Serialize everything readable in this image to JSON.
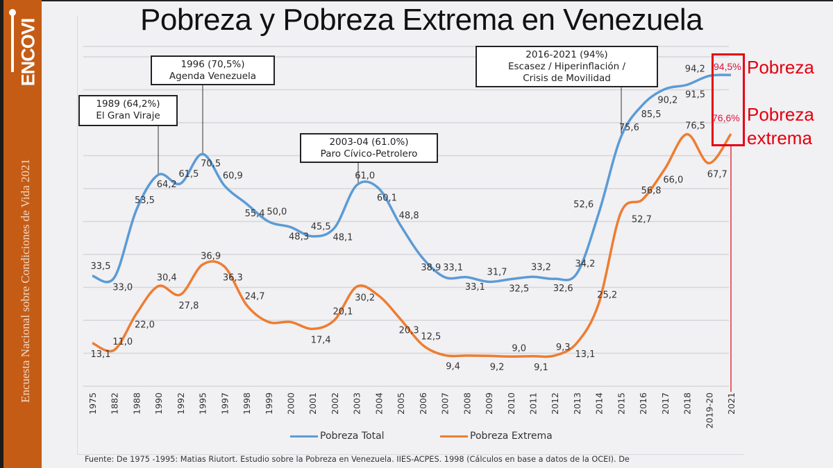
{
  "sidebar": {
    "logo_text": "ENCOVI",
    "subtitle": "Encuesta Nacional sobre Condiciones de Vida 2021",
    "color": "#c55c16"
  },
  "chart_data": {
    "type": "line",
    "title": "Pobreza y Pobreza Extrema en Venezuela",
    "categories": [
      "1975",
      "1882",
      "1988",
      "1990",
      "1992",
      "1995",
      "1997",
      "1998",
      "1999",
      "2000",
      "2001",
      "2002",
      "2003",
      "2004",
      "2005",
      "2006",
      "2007",
      "2008",
      "2009",
      "2010",
      "2011",
      "2012",
      "2013",
      "2014",
      "2015",
      "2016",
      "2017",
      "2018",
      "2019-20",
      "2021"
    ],
    "ylim": [
      0,
      100
    ],
    "grid": true,
    "legend_position": "bottom",
    "series": [
      {
        "name": "Pobreza Total",
        "color": "#5b9bd5",
        "values": [
          33.5,
          33.0,
          53.5,
          64.2,
          61.5,
          70.5,
          60.9,
          55.4,
          50.0,
          48.3,
          45.5,
          48.1,
          61.0,
          60.1,
          48.8,
          38.9,
          33.1,
          33.1,
          31.7,
          32.5,
          33.2,
          32.6,
          34.2,
          52.6,
          75.6,
          85.5,
          90.2,
          91.5,
          94.2,
          94.5
        ],
        "labels": [
          "33,5",
          "33,0",
          "53,5",
          "64,2",
          "61,5",
          "70,5",
          "60,9",
          "55,4",
          "50,0",
          "48,3",
          "45,5",
          "48,1",
          "61,0",
          "60,1",
          "48,8",
          "38,9",
          "33,1",
          "33,1",
          "31,7",
          "32,5",
          "33,2",
          "32,6",
          "34,2",
          "52,6",
          "75,6",
          "85,5",
          "90,2",
          "91,5",
          "94,2",
          null
        ]
      },
      {
        "name": "Pobreza Extrema",
        "color": "#ed7d31",
        "values": [
          13.1,
          11.0,
          22.0,
          30.4,
          27.8,
          36.9,
          36.3,
          24.7,
          19.5,
          19.5,
          17.4,
          20.1,
          30.2,
          27.5,
          20.3,
          12.5,
          9.4,
          9.3,
          9.2,
          9.0,
          9.1,
          9.3,
          13.1,
          25.2,
          52.7,
          56.8,
          66.0,
          76.5,
          67.7,
          76.6
        ],
        "labels": [
          "13,1",
          "11,0",
          "22,0",
          "30,4",
          "27,8",
          "36,9",
          "36,3",
          "24,7",
          null,
          null,
          "17,4",
          "20,1",
          "30,2",
          null,
          "20,3",
          "12,5",
          "9,4",
          null,
          "9,2",
          "9,0",
          "9,1",
          "9,3",
          "13,1",
          "25,2",
          "52,7",
          "56,8",
          "66,0",
          "76,5",
          "67,7",
          null
        ]
      }
    ],
    "annotations": [
      {
        "line1": "1989 (64,2%)",
        "line2": "El Gran Viraje",
        "category": "1990"
      },
      {
        "line1": "1996 (70,5%)",
        "line2": "Agenda Venezuela",
        "category": "1995"
      },
      {
        "line1": "2003-04 (61.0%)",
        "line2": "Paro Cívico-Petrolero",
        "category": "2003"
      },
      {
        "line1": "2016-2021 (94%)",
        "line2": "Escasez / Hiperinflación /",
        "line3": "Crisis de Movilidad",
        "category": "2015"
      }
    ],
    "highlight": {
      "pobreza_pct": "94,5%",
      "pobreza_label": "Pobreza",
      "extrema_pct": "76,6%",
      "extrema_label_1": "Pobreza",
      "extrema_label_2": "extrema",
      "color": "#e3000f"
    }
  },
  "source": "Fuente: De 1975 -1995: Matias Riutort. Estudio sobre la Pobreza en Venezuela. IIES-ACPES. 1998 (Cálculos en base a datos de la OCEI). De"
}
